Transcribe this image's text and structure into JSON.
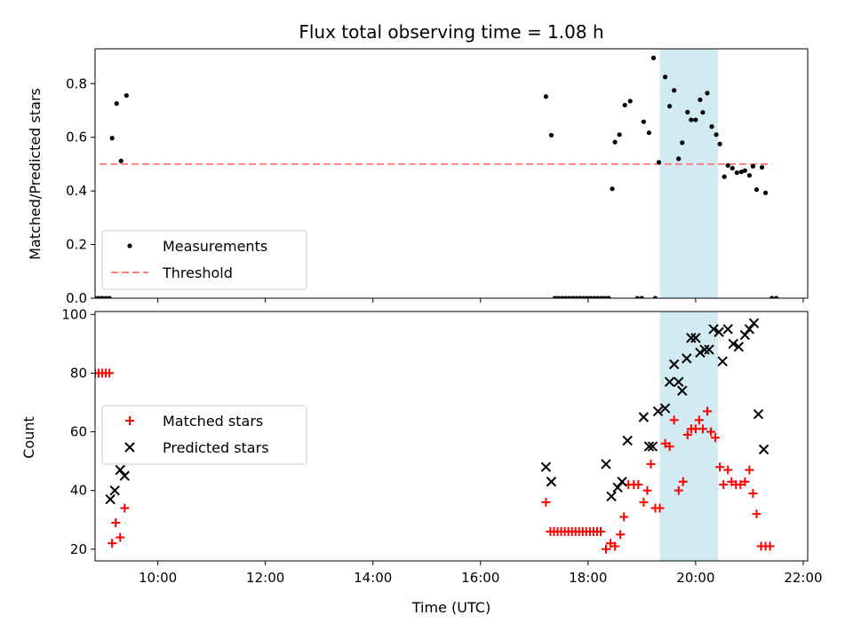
{
  "chart_data": [
    {
      "type": "scatter",
      "title": "Flux total observing time = 1.08 h",
      "xlabel": "",
      "ylabel": "Matched/Predicted stars",
      "xlim": [
        "08:50",
        "22:05"
      ],
      "ylim": [
        0,
        0.93
      ],
      "yticks": [
        0.0,
        0.2,
        0.4,
        0.6,
        0.8
      ],
      "legend_position": "lower-left",
      "shaded_span": [
        "19:20",
        "20:25"
      ],
      "shaded_color": "#add8e6",
      "threshold": {
        "name": "Threshold",
        "value": 0.5,
        "x_range": [
          "08:55",
          "21:25"
        ],
        "color": "#ff7f7f"
      },
      "series": [
        {
          "name": "Measurements",
          "color": "#000000",
          "marker": "dot",
          "points": [
            [
              "08:50",
              0
            ],
            [
              "08:54",
              0
            ],
            [
              "08:58",
              0
            ],
            [
              "09:02",
              0
            ],
            [
              "09:06",
              0
            ],
            [
              "09:09",
              0.597
            ],
            [
              "09:14",
              0.726
            ],
            [
              "09:19",
              0.512
            ],
            [
              "09:25",
              0.756
            ],
            [
              "17:13",
              0.752
            ],
            [
              "17:19",
              0.608
            ],
            [
              "17:23",
              0
            ],
            [
              "17:27",
              0
            ],
            [
              "17:31",
              0
            ],
            [
              "17:35",
              0
            ],
            [
              "17:39",
              0
            ],
            [
              "17:43",
              0
            ],
            [
              "17:47",
              0
            ],
            [
              "17:51",
              0
            ],
            [
              "17:55",
              0
            ],
            [
              "17:59",
              0
            ],
            [
              "18:03",
              0
            ],
            [
              "18:07",
              0
            ],
            [
              "18:11",
              0
            ],
            [
              "18:15",
              0
            ],
            [
              "18:19",
              0
            ],
            [
              "18:23",
              0
            ],
            [
              "18:27",
              0.408
            ],
            [
              "18:30",
              0.582
            ],
            [
              "18:35",
              0.61
            ],
            [
              "18:41",
              0.72
            ],
            [
              "18:47",
              0.735
            ],
            [
              "18:55",
              0
            ],
            [
              "19:00",
              0
            ],
            [
              "19:15",
              0
            ],
            [
              "19:02",
              0.658
            ],
            [
              "19:08",
              0.617
            ],
            [
              "19:13",
              0.896
            ],
            [
              "19:19",
              0.507
            ],
            [
              "19:26",
              0.825
            ],
            [
              "19:31",
              0.716
            ],
            [
              "19:36",
              0.775
            ],
            [
              "19:41",
              0.52
            ],
            [
              "19:45",
              0.58
            ],
            [
              "19:51",
              0.694
            ],
            [
              "19:55",
              0.665
            ],
            [
              "20:00",
              0.665
            ],
            [
              "20:05",
              0.74
            ],
            [
              "20:08",
              0.693
            ],
            [
              "20:13",
              0.765
            ],
            [
              "20:18",
              0.64
            ],
            [
              "20:23",
              0.61
            ],
            [
              "20:27",
              0.575
            ],
            [
              "20:32",
              0.453
            ],
            [
              "20:36",
              0.495
            ],
            [
              "20:41",
              0.485
            ],
            [
              "20:46",
              0.468
            ],
            [
              "20:51",
              0.471
            ],
            [
              "20:55",
              0.476
            ],
            [
              "21:00",
              0.458
            ],
            [
              "21:04",
              0.492
            ],
            [
              "21:08",
              0.405
            ],
            [
              "21:14",
              0.488
            ],
            [
              "21:18",
              0.393
            ],
            [
              "21:25",
              0
            ],
            [
              "21:30",
              0
            ]
          ]
        }
      ]
    },
    {
      "type": "scatter",
      "title": "",
      "xlabel": "Time (UTC)",
      "ylabel": "Count",
      "xlim": [
        "08:50",
        "22:05"
      ],
      "ylim": [
        16,
        101
      ],
      "xticks": [
        "10:00",
        "12:00",
        "14:00",
        "16:00",
        "18:00",
        "20:00",
        "22:00"
      ],
      "yticks": [
        20,
        40,
        60,
        80,
        100
      ],
      "legend_position": "center-left",
      "shaded_span": [
        "19:20",
        "20:25"
      ],
      "series": [
        {
          "name": "Matched stars",
          "color": "#ff0000",
          "marker": "plus",
          "points": [
            [
              "08:50",
              80
            ],
            [
              "08:54",
              80
            ],
            [
              "08:58",
              80
            ],
            [
              "09:02",
              80
            ],
            [
              "09:06",
              80
            ],
            [
              "09:09",
              22
            ],
            [
              "09:13",
              29
            ],
            [
              "09:18",
              24
            ],
            [
              "09:23",
              34
            ],
            [
              "17:13",
              36
            ],
            [
              "17:18",
              26
            ],
            [
              "17:22",
              26
            ],
            [
              "17:26",
              26
            ],
            [
              "17:30",
              26
            ],
            [
              "17:34",
              26
            ],
            [
              "17:38",
              26
            ],
            [
              "17:42",
              26
            ],
            [
              "17:46",
              26
            ],
            [
              "17:50",
              26
            ],
            [
              "17:54",
              26
            ],
            [
              "17:58",
              26
            ],
            [
              "18:02",
              26
            ],
            [
              "18:06",
              26
            ],
            [
              "18:10",
              26
            ],
            [
              "18:14",
              26
            ],
            [
              "18:20",
              20
            ],
            [
              "18:25",
              22
            ],
            [
              "18:30",
              21
            ],
            [
              "18:36",
              25
            ],
            [
              "18:40",
              31
            ],
            [
              "18:45",
              42
            ],
            [
              "18:51",
              42
            ],
            [
              "18:56",
              42
            ],
            [
              "19:02",
              36
            ],
            [
              "19:06",
              40
            ],
            [
              "19:10",
              49
            ],
            [
              "19:15",
              34
            ],
            [
              "19:20",
              34
            ],
            [
              "19:26",
              56
            ],
            [
              "19:31",
              55
            ],
            [
              "19:36",
              64
            ],
            [
              "19:41",
              40
            ],
            [
              "19:46",
              43
            ],
            [
              "19:51",
              59
            ],
            [
              "19:55",
              61
            ],
            [
              "20:00",
              61
            ],
            [
              "20:04",
              64
            ],
            [
              "20:08",
              61
            ],
            [
              "20:13",
              67
            ],
            [
              "20:17",
              60
            ],
            [
              "20:22",
              58
            ],
            [
              "20:27",
              48
            ],
            [
              "20:31",
              42
            ],
            [
              "20:36",
              47
            ],
            [
              "20:40",
              43
            ],
            [
              "20:45",
              42
            ],
            [
              "20:50",
              42
            ],
            [
              "20:55",
              43
            ],
            [
              "21:00",
              47
            ],
            [
              "21:04",
              39
            ],
            [
              "21:08",
              32
            ],
            [
              "21:13",
              21
            ],
            [
              "21:18",
              21
            ],
            [
              "21:23",
              21
            ]
          ]
        },
        {
          "name": "Predicted stars",
          "color": "#000000",
          "marker": "x",
          "points": [
            [
              "09:07",
              37
            ],
            [
              "09:12",
              40
            ],
            [
              "09:18",
              47
            ],
            [
              "09:23",
              45
            ],
            [
              "17:13",
              48
            ],
            [
              "17:19",
              43
            ],
            [
              "18:20",
              49
            ],
            [
              "18:26",
              38
            ],
            [
              "18:33",
              41
            ],
            [
              "18:38",
              43
            ],
            [
              "18:44",
              57
            ],
            [
              "19:02",
              65
            ],
            [
              "19:08",
              55
            ],
            [
              "19:12",
              55
            ],
            [
              "19:18",
              67
            ],
            [
              "19:26",
              68
            ],
            [
              "19:31",
              77
            ],
            [
              "19:36",
              83
            ],
            [
              "19:41",
              77
            ],
            [
              "19:45",
              74
            ],
            [
              "19:50",
              85
            ],
            [
              "19:55",
              92
            ],
            [
              "20:00",
              92
            ],
            [
              "20:05",
              87
            ],
            [
              "20:10",
              88
            ],
            [
              "20:15",
              88
            ],
            [
              "20:20",
              95
            ],
            [
              "20:26",
              94
            ],
            [
              "20:30",
              84
            ],
            [
              "20:36",
              95
            ],
            [
              "20:42",
              90
            ],
            [
              "20:48",
              89
            ],
            [
              "20:55",
              93
            ],
            [
              "21:00",
              95
            ],
            [
              "21:05",
              97
            ],
            [
              "21:10",
              66
            ],
            [
              "21:16",
              54
            ]
          ]
        }
      ]
    }
  ]
}
